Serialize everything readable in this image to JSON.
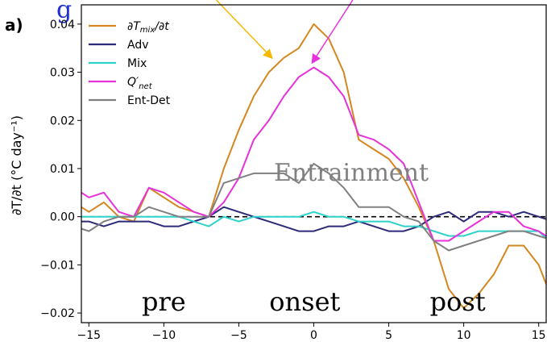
{
  "chart_data": {
    "type": "line",
    "panel_label": "a)",
    "ylabel": "∂T/∂t (°C day⁻¹)",
    "xlim": [
      -15.5,
      15.5
    ],
    "ylim": [
      -0.022,
      0.044
    ],
    "x_ticks": [
      -15,
      -10,
      -5,
      0,
      5,
      10,
      15
    ],
    "y_ticks": [
      -0.02,
      -0.01,
      0.0,
      0.01,
      0.02,
      0.03,
      0.04
    ],
    "y_tick_labels": [
      "−0.02",
      "−0.01",
      "0.00",
      "0.01",
      "0.02",
      "0.03",
      "0.04"
    ],
    "x_tick_labels": [
      "−15",
      "−10",
      "−5",
      "0",
      "5",
      "10",
      "15"
    ],
    "legend_position": "top-left",
    "zero_line": "dashed",
    "series": [
      {
        "name": "∂T_mix/∂t",
        "color": "#d4871f",
        "x": [
          -16,
          -15,
          -14,
          -13,
          -12,
          -11,
          -10,
          -9,
          -8,
          -7,
          -6,
          -5,
          -4,
          -3,
          -2,
          -1,
          0,
          1,
          2,
          3,
          4,
          5,
          6,
          7,
          8,
          9,
          10,
          11,
          12,
          13,
          14,
          15,
          16
        ],
        "y": [
          0.003,
          0.001,
          0.003,
          0.0,
          -0.001,
          0.006,
          0.004,
          0.002,
          0.001,
          0.0,
          0.01,
          0.018,
          0.025,
          0.03,
          0.033,
          0.035,
          0.04,
          0.037,
          0.03,
          0.016,
          0.014,
          0.012,
          0.008,
          0.002,
          -0.005,
          -0.015,
          -0.019,
          -0.016,
          -0.012,
          -0.006,
          -0.006,
          -0.01,
          -0.018
        ]
      },
      {
        "name": "Adv",
        "color": "#2e2a7a",
        "x": [
          -16,
          -15,
          -14,
          -13,
          -12,
          -11,
          -10,
          -9,
          -8,
          -7,
          -6,
          -5,
          -4,
          -3,
          -2,
          -1,
          0,
          1,
          2,
          3,
          4,
          5,
          6,
          7,
          8,
          9,
          10,
          11,
          12,
          13,
          14,
          15,
          16
        ],
        "y": [
          -0.001,
          -0.001,
          -0.002,
          -0.001,
          -0.001,
          -0.001,
          -0.002,
          -0.002,
          -0.001,
          0.0,
          0.002,
          0.001,
          0.0,
          -0.001,
          -0.002,
          -0.003,
          -0.003,
          -0.002,
          -0.002,
          -0.001,
          -0.002,
          -0.003,
          -0.003,
          -0.002,
          0.0,
          0.001,
          -0.001,
          0.001,
          0.001,
          0.0,
          0.001,
          0.0,
          -0.001
        ]
      },
      {
        "name": "Mix",
        "color": "#2dd3c8",
        "x": [
          -16,
          -15,
          -14,
          -13,
          -12,
          -11,
          -10,
          -9,
          -8,
          -7,
          -6,
          -5,
          -4,
          -3,
          -2,
          -1,
          0,
          1,
          2,
          3,
          4,
          5,
          6,
          7,
          8,
          9,
          10,
          11,
          12,
          13,
          14,
          15,
          16
        ],
        "y": [
          0.0,
          0.0,
          0.0,
          0.0,
          0.0,
          0.0,
          0.0,
          0.0,
          -0.001,
          -0.002,
          0.0,
          -0.001,
          0.0,
          0.0,
          0.0,
          0.0,
          0.001,
          0.0,
          0.0,
          -0.001,
          -0.001,
          -0.001,
          -0.002,
          -0.002,
          -0.003,
          -0.004,
          -0.004,
          -0.003,
          -0.003,
          -0.003,
          -0.003,
          -0.003,
          -0.006
        ]
      },
      {
        "name": "Q′_net",
        "color": "#e533d9",
        "x": [
          -16,
          -15,
          -14,
          -13,
          -12,
          -11,
          -10,
          -9,
          -8,
          -7,
          -6,
          -5,
          -4,
          -3,
          -2,
          -1,
          0,
          1,
          2,
          3,
          4,
          5,
          6,
          7,
          8,
          9,
          10,
          11,
          12,
          13,
          14,
          15,
          16
        ],
        "y": [
          0.006,
          0.004,
          0.005,
          0.001,
          0.0,
          0.006,
          0.005,
          0.003,
          0.001,
          0.0,
          0.003,
          0.008,
          0.016,
          0.02,
          0.025,
          0.029,
          0.031,
          0.029,
          0.025,
          0.017,
          0.016,
          0.014,
          0.011,
          0.003,
          -0.005,
          -0.005,
          -0.003,
          -0.001,
          0.001,
          0.001,
          -0.002,
          -0.003,
          -0.005
        ]
      },
      {
        "name": "Ent-Det",
        "color": "#808080",
        "x": [
          -16,
          -15,
          -14,
          -13,
          -12,
          -11,
          -10,
          -9,
          -8,
          -7,
          -6,
          -5,
          -4,
          -3,
          -2,
          -1,
          0,
          1,
          2,
          3,
          4,
          5,
          6,
          7,
          8,
          9,
          10,
          11,
          12,
          13,
          14,
          15,
          16
        ],
        "y": [
          -0.002,
          -0.003,
          -0.001,
          0.0,
          0.0,
          0.002,
          0.001,
          0.0,
          0.0,
          0.0,
          0.007,
          0.008,
          0.009,
          0.009,
          0.009,
          0.007,
          0.011,
          0.009,
          0.006,
          0.002,
          0.002,
          0.002,
          0.0,
          -0.001,
          -0.005,
          -0.007,
          -0.006,
          -0.005,
          -0.004,
          -0.003,
          -0.003,
          -0.004,
          -0.005
        ]
      }
    ],
    "annotations": [
      {
        "id": "pre",
        "text": "pre",
        "x": -10,
        "y": -0.0195,
        "style": "serif"
      },
      {
        "id": "onset",
        "text": "onset",
        "x": -0.6,
        "y": -0.0195,
        "style": "serif"
      },
      {
        "id": "post",
        "text": "post",
        "x": 9.6,
        "y": -0.0195,
        "style": "serif"
      },
      {
        "id": "entrainment",
        "text": "Entrainment",
        "x": 2.5,
        "y": 0.0075,
        "style": "gray"
      },
      {
        "id": "top",
        "text": "g",
        "x": -16.5,
        "y": 0.0445,
        "style": "blue"
      }
    ],
    "arrows": [
      {
        "color": "#f5b800",
        "from": [
          -6.5,
          0.046
        ],
        "to": [
          -2.8,
          0.033
        ]
      },
      {
        "color": "#e533d9",
        "from": [
          2.6,
          0.046
        ],
        "to": [
          -0.1,
          0.032
        ]
      }
    ]
  }
}
